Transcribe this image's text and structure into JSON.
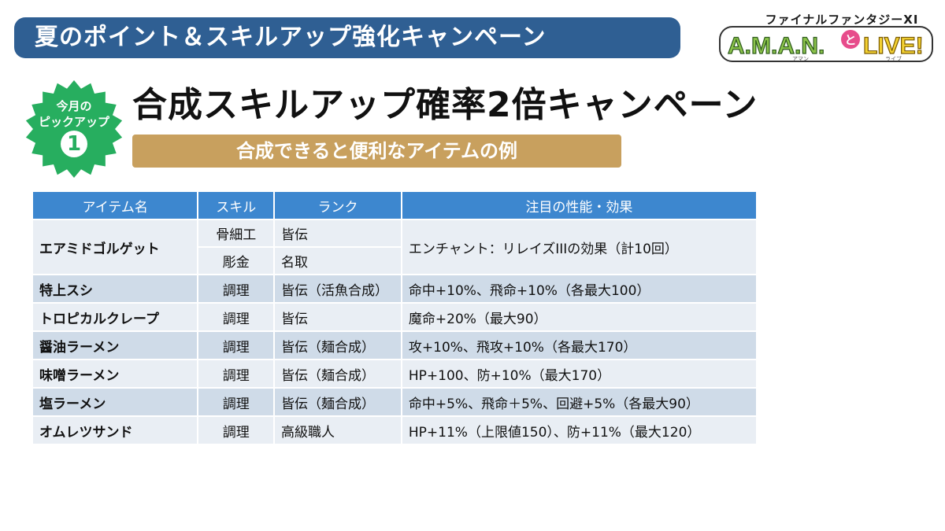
{
  "banner": {
    "title": "夏のポイント＆スキルアップ強化キャンペーン"
  },
  "logo": {
    "top": "ファイナルファンタジーXI",
    "a": "A.M.A.N.",
    "to": "と",
    "live": "LIVE!",
    "sub_left": "アマン",
    "sub_right": "ライブ"
  },
  "pickup": {
    "line1": "今月の",
    "line2": "ピックアップ",
    "number": "1"
  },
  "headline": "合成スキルアップ確率2倍キャンペーン",
  "subheading": "合成できると便利なアイテムの例",
  "table": {
    "headers": [
      "アイテム名",
      "スキル",
      "ランク",
      "注目の性能・効果"
    ],
    "rows": [
      {
        "name": "エアミドゴルゲット",
        "skills": [
          {
            "skill": "骨細工",
            "rank": "皆伝"
          },
          {
            "skill": "彫金",
            "rank": "名取"
          }
        ],
        "effect": "エンチャント：リレイズIIIの効果（計10回）"
      },
      {
        "name": "特上スシ",
        "skill": "調理",
        "rank": "皆伝（活魚合成）",
        "effect": "命中+10%、飛命+10%（各最大100）"
      },
      {
        "name": "トロピカルクレープ",
        "skill": "調理",
        "rank": "皆伝",
        "effect": "魔命+20%（最大90）"
      },
      {
        "name": "醤油ラーメン",
        "skill": "調理",
        "rank": "皆伝（麺合成）",
        "effect": "攻+10%、飛攻+10%（各最大170）"
      },
      {
        "name": "味噌ラーメン",
        "skill": "調理",
        "rank": "皆伝（麺合成）",
        "effect": "HP+100、防+10%（最大170）"
      },
      {
        "name": "塩ラーメン",
        "skill": "調理",
        "rank": "皆伝（麺合成）",
        "effect": "命中+5%、飛命＋5%、回避+5%（各最大90）"
      },
      {
        "name": "オムレツサンド",
        "skill": "調理",
        "rank": "高級職人",
        "effect": "HP+11%（上限値150）、防+11%（最大120）"
      }
    ]
  }
}
